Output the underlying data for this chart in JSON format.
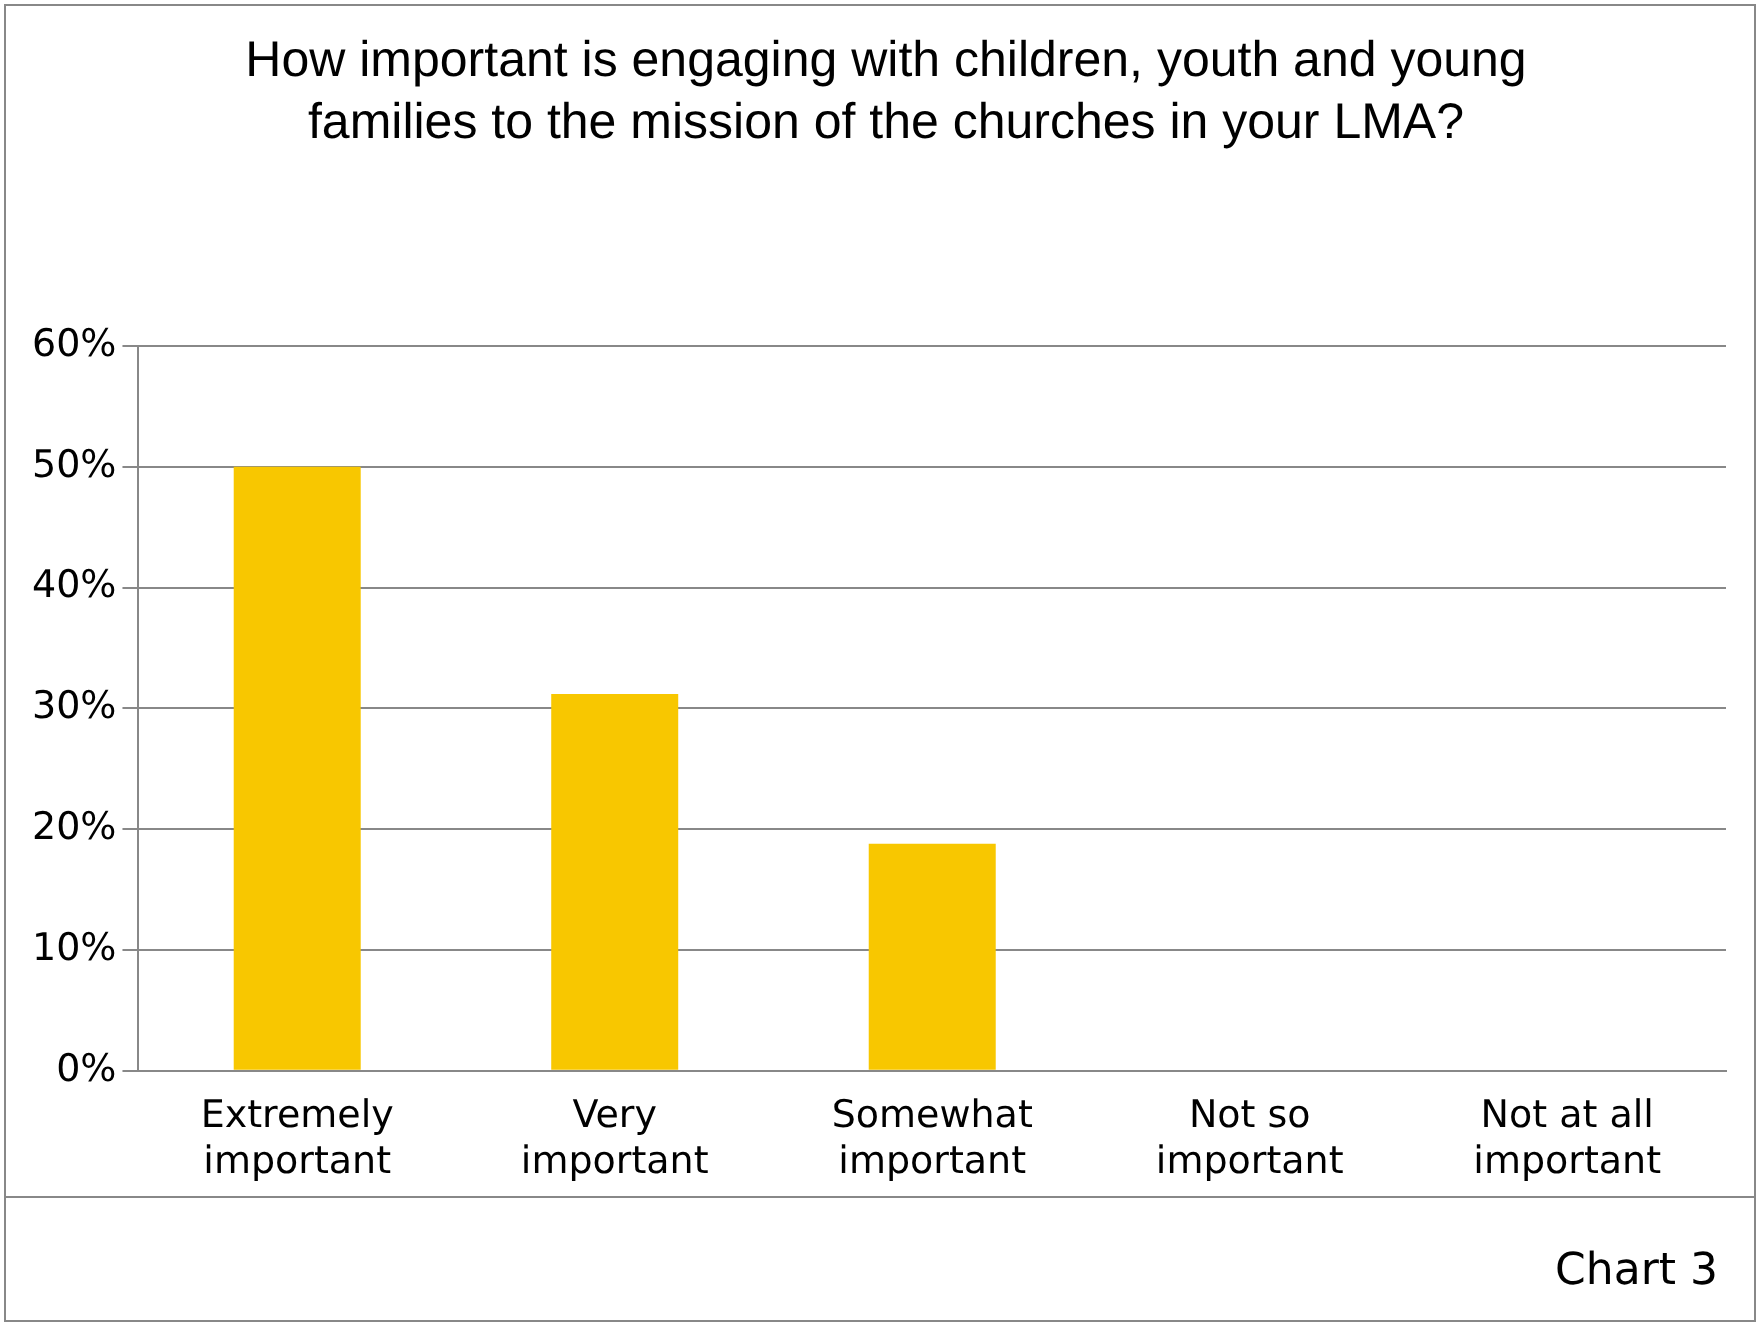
{
  "chart_data": {
    "type": "bar",
    "title": "How important is engaging with children, youth and young families to the mission of the churches in your LMA?",
    "categories": [
      "Extremely important",
      "Very important",
      "Somewhat important",
      "Not so important",
      "Not at all important"
    ],
    "values": [
      50,
      31.2,
      18.8,
      0,
      0
    ],
    "color": "#f8c700",
    "ylim": [
      0,
      60
    ],
    "yticks": [
      {
        "value": 0,
        "label": "0%"
      },
      {
        "value": 10,
        "label": "10%"
      },
      {
        "value": 20,
        "label": "20%"
      },
      {
        "value": 30,
        "label": "30%"
      },
      {
        "value": 40,
        "label": "40%"
      },
      {
        "value": 50,
        "label": "50%"
      },
      {
        "value": 60,
        "label": "60%"
      }
    ],
    "grid": "y",
    "legend": false,
    "annotations": [
      "Chart 3"
    ]
  }
}
